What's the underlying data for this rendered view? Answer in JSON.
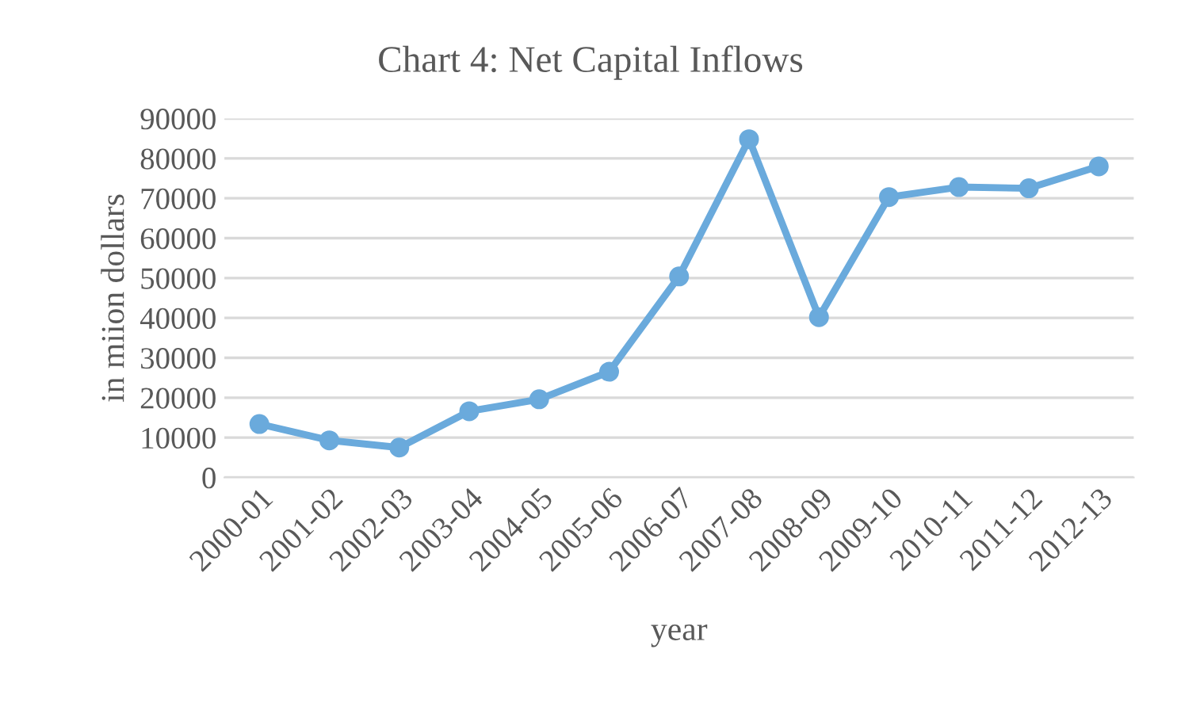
{
  "chart_data": {
    "type": "line",
    "title": "Chart 4: Net Capital Inflows",
    "xlabel": "year",
    "ylabel": "in miion dollars",
    "categories": [
      "2000-01",
      "2001-02",
      "2002-03",
      "2003-04",
      "2004-05",
      "2005-06",
      "2006-07",
      "2007-08",
      "2008-09",
      "2009-10",
      "2010-11",
      "2011-12",
      "2012-13"
    ],
    "series": [
      {
        "color": "#6aaadc",
        "values": [
          13400,
          9300,
          7500,
          16600,
          19600,
          26500,
          50400,
          84800,
          40200,
          70300,
          72800,
          72500,
          78000
        ]
      }
    ],
    "ylim": [
      0,
      90000
    ],
    "yticks": [
      0,
      10000,
      20000,
      30000,
      40000,
      50000,
      60000,
      70000,
      80000,
      90000
    ],
    "grid": "y",
    "marker": "circle",
    "line_style": "solid"
  }
}
